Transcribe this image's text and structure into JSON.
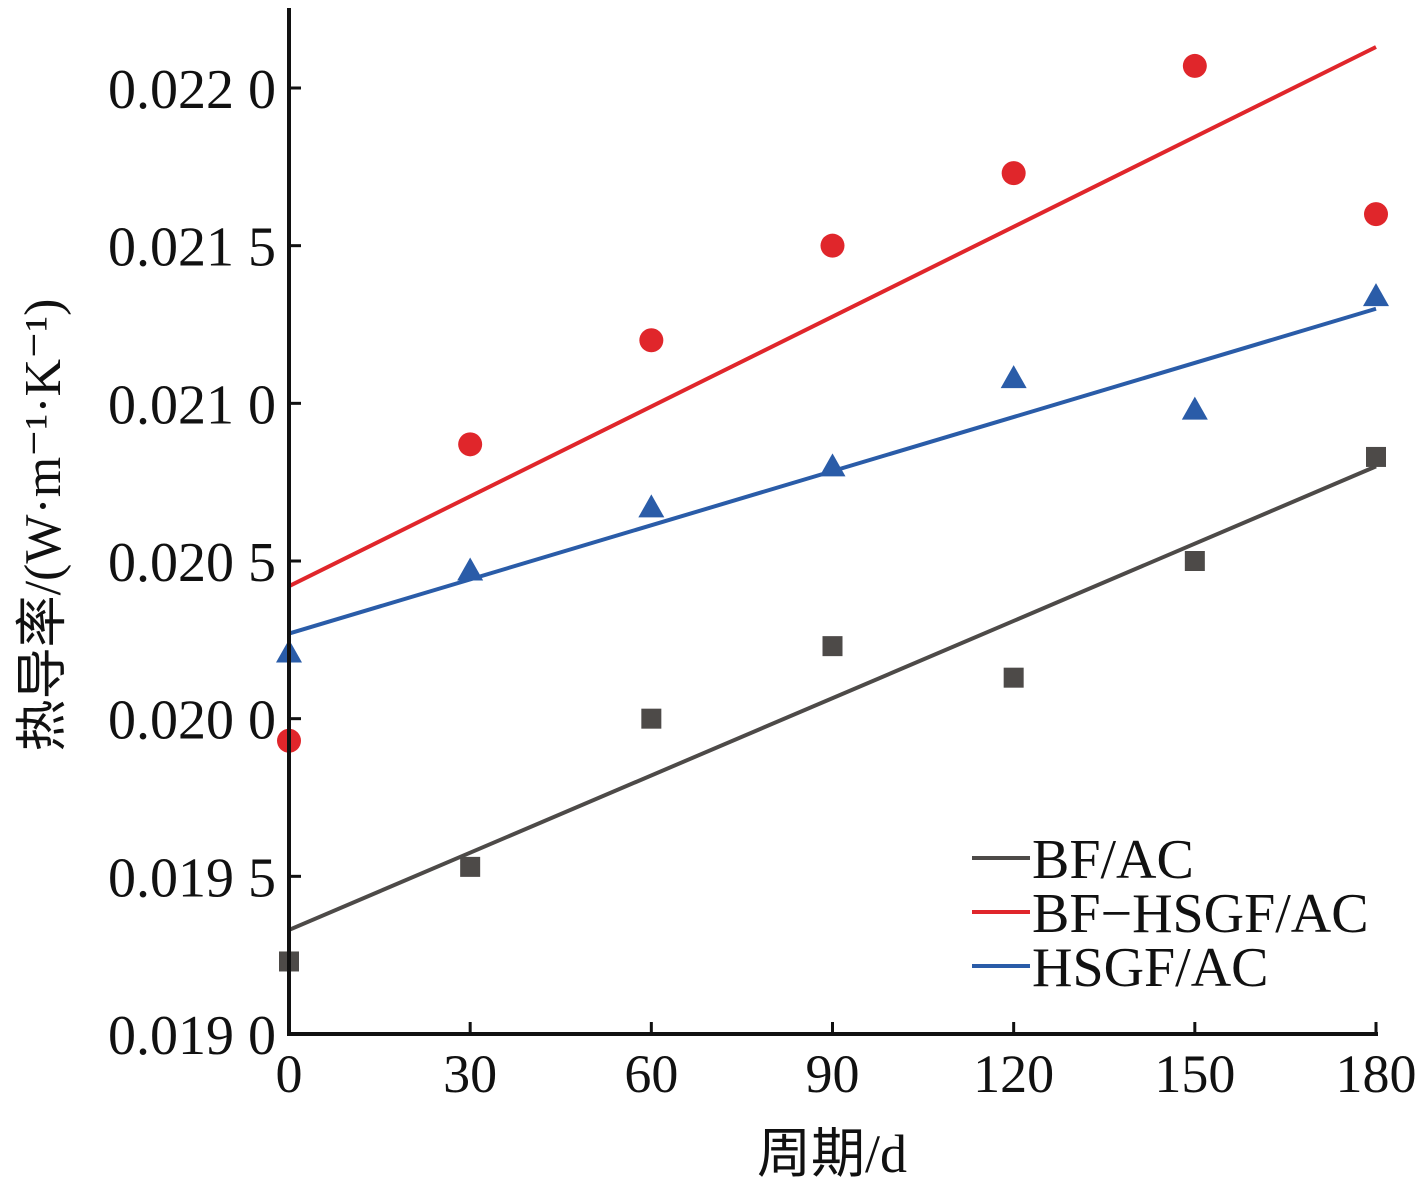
{
  "chart_data": {
    "type": "scatter",
    "title": "",
    "xlabel": "周期/d",
    "ylabel": "热导率/(W·m⁻¹·K⁻¹)",
    "xlim": [
      0,
      180
    ],
    "ylim": [
      0.019,
      0.0222
    ],
    "x_ticks": [
      0,
      30,
      60,
      90,
      120,
      150,
      180
    ],
    "x_tick_labels": [
      "0",
      "30",
      "60",
      "90",
      "120",
      "150",
      "180"
    ],
    "y_ticks": [
      0.019,
      0.0195,
      0.02,
      0.0205,
      0.021,
      0.0215,
      0.022
    ],
    "y_tick_labels": [
      "0.019 0",
      "0.019 5",
      "0.020 0",
      "0.020 5",
      "0.021 0",
      "0.021 5",
      "0.022 0"
    ],
    "grid": false,
    "legend_position": "bottom-right",
    "x": [
      0,
      30,
      60,
      90,
      120,
      150,
      180
    ],
    "series": [
      {
        "name": "BF/AC",
        "color": "#4d4a48",
        "marker": "square",
        "values": [
          0.01923,
          0.01953,
          0.02,
          0.02023,
          0.02013,
          0.0205,
          0.02083
        ],
        "fit_line": [
          [
            0,
            0.01933
          ],
          [
            180,
            0.0208
          ]
        ]
      },
      {
        "name": "BF−HSGF/AC",
        "color": "#e0262b",
        "marker": "circle",
        "values": [
          0.01993,
          0.02087,
          0.0212,
          0.0215,
          0.02173,
          0.02207,
          0.0216
        ],
        "fit_line": [
          [
            0,
            0.02042
          ],
          [
            180,
            0.02213
          ]
        ]
      },
      {
        "name": "HSGF/AC",
        "color": "#2a5ca8",
        "marker": "triangle",
        "values": [
          0.02021,
          0.02047,
          0.02067,
          0.0208,
          0.02108,
          0.02098,
          0.02134
        ],
        "fit_line": [
          [
            0,
            0.02027
          ],
          [
            180,
            0.0213
          ]
        ]
      }
    ]
  }
}
